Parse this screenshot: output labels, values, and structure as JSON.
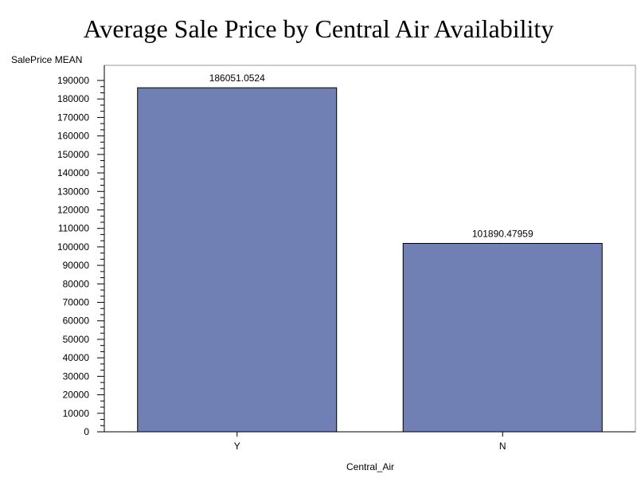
{
  "chart_data": {
    "type": "bar",
    "title": "Average Sale Price by Central Air Availability",
    "xlabel": "Central_Air",
    "ylabel": "SalePrice MEAN",
    "categories": [
      "Y",
      "N"
    ],
    "values": [
      186051.0524,
      101890.47959
    ],
    "value_labels": [
      "186051.0524",
      "101890.47959"
    ],
    "ylim": [
      0,
      190000
    ],
    "yticks": [
      "0",
      "10000",
      "20000",
      "30000",
      "40000",
      "50000",
      "60000",
      "70000",
      "80000",
      "90000",
      "100000",
      "110000",
      "120000",
      "130000",
      "140000",
      "150000",
      "160000",
      "170000",
      "180000",
      "190000"
    ],
    "y_minor_ticks_per_major": 2,
    "grid": false,
    "legend": "none",
    "bar_color": "#7080b4",
    "bar_outline": "#000000",
    "frame_color": "#9a9a9a"
  }
}
